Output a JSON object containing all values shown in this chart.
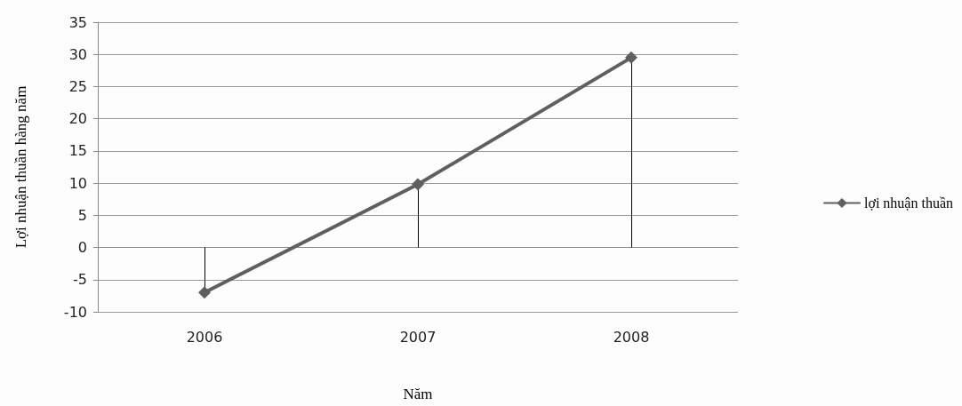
{
  "chart_data": {
    "type": "line",
    "xlabel": "Năm",
    "ylabel": "Lợi nhuận thuần hàng năm",
    "categories": [
      "2006",
      "2007",
      "2008"
    ],
    "series": [
      {
        "name": "lợi nhuận thuần",
        "color": "#5f5f5f",
        "values": [
          -7,
          9.8,
          29.5
        ],
        "errors": [
          [
            -7,
            0
          ],
          [
            0,
            9.8
          ],
          [
            0,
            29.5
          ]
        ]
      }
    ],
    "ylim": [
      -10,
      35
    ],
    "yticks": [
      -10,
      -5,
      0,
      5,
      10,
      15,
      20,
      25,
      30,
      35
    ],
    "grid": "y",
    "legend": "right",
    "marker": "diamond",
    "line_style": "solid"
  }
}
